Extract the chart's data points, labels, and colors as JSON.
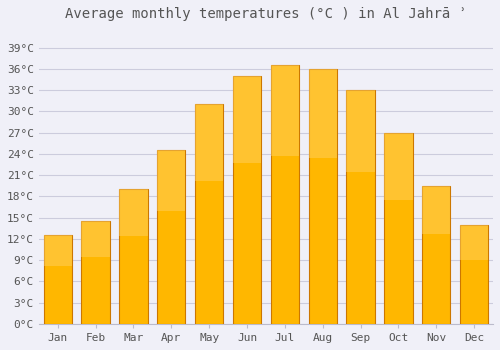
{
  "title": "Average monthly temperatures (°C ) in Al Jahrā ʾ",
  "months": [
    "Jan",
    "Feb",
    "Mar",
    "Apr",
    "May",
    "Jun",
    "Jul",
    "Aug",
    "Sep",
    "Oct",
    "Nov",
    "Dec"
  ],
  "values": [
    12.5,
    14.5,
    19.0,
    24.5,
    31.0,
    35.0,
    36.5,
    36.0,
    33.0,
    27.0,
    19.5,
    14.0
  ],
  "bar_color_top": "#FFB400",
  "bar_color_bottom": "#FF8C00",
  "bar_edge_color": "#CC7700",
  "background_color": "#F0F0F8",
  "grid_color": "#CCCCDD",
  "text_color": "#555555",
  "ylim": [
    0,
    42
  ],
  "yticks": [
    0,
    3,
    6,
    9,
    12,
    15,
    18,
    21,
    24,
    27,
    30,
    33,
    36,
    39
  ],
  "title_fontsize": 10,
  "tick_fontsize": 8,
  "figsize": [
    5.0,
    3.5
  ],
  "dpi": 100
}
